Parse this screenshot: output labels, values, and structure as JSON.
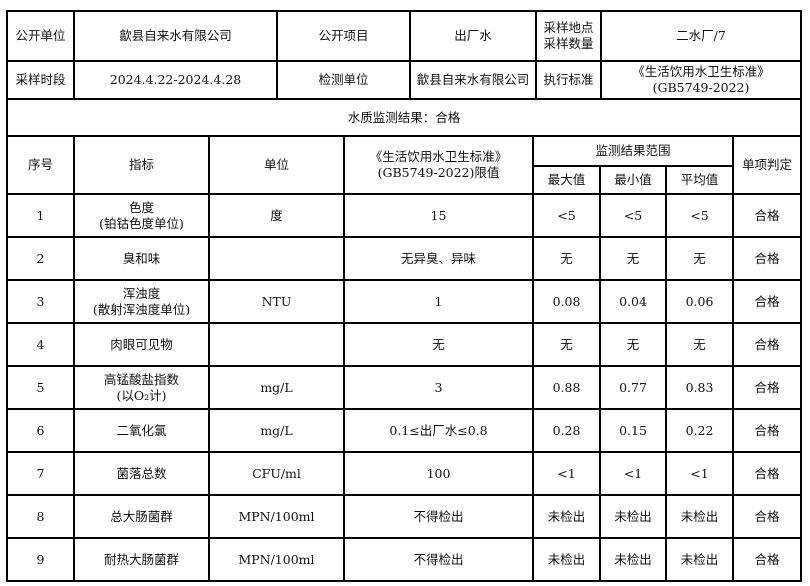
{
  "info": {
    "publisher_label": "公开单位",
    "publisher": "歙县自来水有限公司",
    "item_label": "公开项目",
    "item": "出厂水",
    "sampling_label_1": "采样地点",
    "sampling_label_2": "采样数量",
    "sampling_value": "二水厂/7",
    "period_label": "采样时段",
    "period": "2024.4.22-2024.4.28",
    "lab_label": "检测单位",
    "lab": "歙县自来水有限公司",
    "standard_label": "执行标准",
    "standard_1": "《生活饮用水卫生标准》",
    "standard_2": "(GB5749-2022)"
  },
  "result_title": "水质监测结果：合格",
  "headers": {
    "no": "序号",
    "indicator": "指标",
    "unit": "单位",
    "limit_1": "《生活饮用水卫生标准》",
    "limit_2": "(GB5749-2022)限值",
    "range": "监测结果范围",
    "max": "最大值",
    "min": "最小值",
    "avg": "平均值",
    "verdict": "单项判定"
  },
  "rows": [
    {
      "no": "1",
      "name": "色度",
      "name2": "(铂钴色度单位)",
      "unit": "度",
      "limit": "15",
      "max": "<5",
      "min": "<5",
      "avg": "<5",
      "verdict": "合格"
    },
    {
      "no": "2",
      "name": "臭和味",
      "name2": "",
      "unit": "",
      "limit": "无异臭、异味",
      "max": "无",
      "min": "无",
      "avg": "无",
      "verdict": "合格"
    },
    {
      "no": "3",
      "name": "浑浊度",
      "name2": "(散射浑浊度单位)",
      "unit": "NTU",
      "limit": "1",
      "max": "0.08",
      "min": "0.04",
      "avg": "0.06",
      "verdict": "合格"
    },
    {
      "no": "4",
      "name": "肉眼可见物",
      "name2": "",
      "unit": "",
      "limit": "无",
      "max": "无",
      "min": "无",
      "avg": "无",
      "verdict": "合格"
    },
    {
      "no": "5",
      "name": "高锰酸盐指数",
      "name2": "(以O₂计)",
      "unit": "mg/L",
      "limit": "3",
      "max": "0.88",
      "min": "0.77",
      "avg": "0.83",
      "verdict": "合格"
    },
    {
      "no": "6",
      "name": "二氧化氯",
      "name2": "",
      "unit": "mg/L",
      "limit": "0.1≤出厂水≤0.8",
      "max": "0.28",
      "min": "0.15",
      "avg": "0.22",
      "verdict": "合格"
    },
    {
      "no": "7",
      "name": "菌落总数",
      "name2": "",
      "unit": "CFU/ml",
      "limit": "100",
      "max": "<1",
      "min": "<1",
      "avg": "<1",
      "verdict": "合格"
    },
    {
      "no": "8",
      "name": "总大肠菌群",
      "name2": "",
      "unit": "MPN/100ml",
      "limit": "不得检出",
      "max": "未检出",
      "min": "未检出",
      "avg": "未检出",
      "verdict": "合格"
    },
    {
      "no": "9",
      "name": "耐热大肠菌群",
      "name2": "",
      "unit": "MPN/100ml",
      "limit": "不得检出",
      "max": "未检出",
      "min": "未检出",
      "avg": "未检出",
      "verdict": "合格"
    }
  ]
}
